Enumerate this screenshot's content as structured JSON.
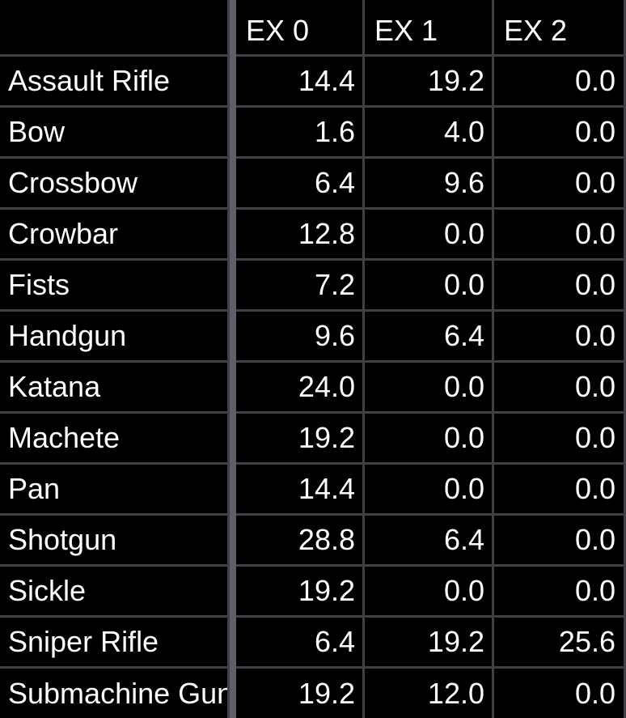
{
  "table": {
    "columns": [
      "",
      "EX 0",
      "EX 1",
      "EX 2"
    ],
    "rows": [
      {
        "name": "Assault Rifle",
        "ex0": "14.4",
        "ex1": "19.2",
        "ex2": "0.0"
      },
      {
        "name": "Bow",
        "ex0": "1.6",
        "ex1": "4.0",
        "ex2": "0.0"
      },
      {
        "name": "Crossbow",
        "ex0": "6.4",
        "ex1": "9.6",
        "ex2": "0.0"
      },
      {
        "name": "Crowbar",
        "ex0": "12.8",
        "ex1": "0.0",
        "ex2": "0.0"
      },
      {
        "name": "Fists",
        "ex0": "7.2",
        "ex1": "0.0",
        "ex2": "0.0"
      },
      {
        "name": "Handgun",
        "ex0": "9.6",
        "ex1": "6.4",
        "ex2": "0.0"
      },
      {
        "name": "Katana",
        "ex0": "24.0",
        "ex1": "0.0",
        "ex2": "0.0"
      },
      {
        "name": "Machete",
        "ex0": "19.2",
        "ex1": "0.0",
        "ex2": "0.0"
      },
      {
        "name": "Pan",
        "ex0": "14.4",
        "ex1": "0.0",
        "ex2": "0.0"
      },
      {
        "name": "Shotgun",
        "ex0": "28.8",
        "ex1": "6.4",
        "ex2": "0.0"
      },
      {
        "name": "Sickle",
        "ex0": "19.2",
        "ex1": "0.0",
        "ex2": "0.0"
      },
      {
        "name": "Sniper Rifle",
        "ex0": "6.4",
        "ex1": "19.2",
        "ex2": "25.6"
      },
      {
        "name": "Submachine Gun",
        "ex0": "19.2",
        "ex1": "12.0",
        "ex2": "0.0"
      }
    ]
  },
  "colors": {
    "background": "#000000",
    "text": "#ffffff",
    "gridline": "#3f4146",
    "freeze_divider": "#5d6066"
  }
}
